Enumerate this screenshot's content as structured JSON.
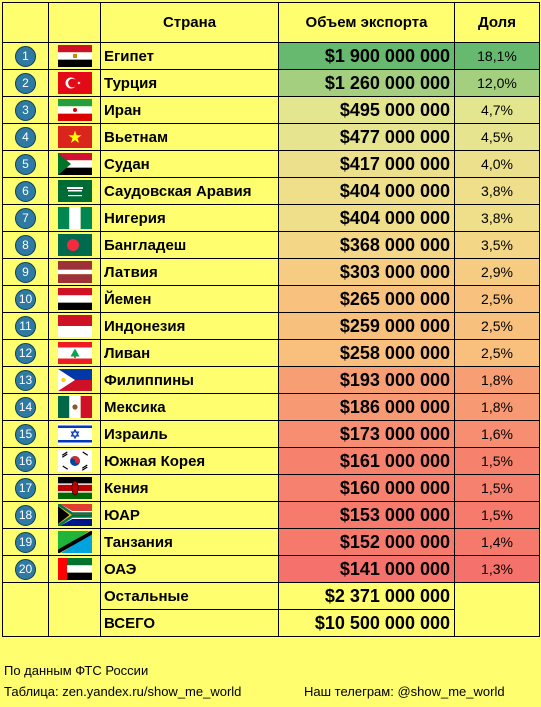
{
  "header": {
    "country": "Страна",
    "value": "Объем экспорта",
    "share": "Доля"
  },
  "rows": [
    {
      "num": "1",
      "flag": "egypt-flag",
      "country": "Египет",
      "value": "$1 900 000 000",
      "share": "18,1%",
      "color": "#66b96e"
    },
    {
      "num": "2",
      "flag": "turkey-flag",
      "country": "Турция",
      "value": "$1 260 000 000",
      "share": "12,0%",
      "color": "#a3cf7e"
    },
    {
      "num": "3",
      "flag": "iran-flag",
      "country": "Иран",
      "value": "$495 000 000",
      "share": "4,7%",
      "color": "#e4e58f"
    },
    {
      "num": "4",
      "flag": "vietnam-flag",
      "country": "Вьетнам",
      "value": "$477 000 000",
      "share": "4,5%",
      "color": "#e6e48f"
    },
    {
      "num": "5",
      "flag": "sudan-flag",
      "country": "Судан",
      "value": "$417 000 000",
      "share": "4,0%",
      "color": "#ede08c"
    },
    {
      "num": "6",
      "flag": "saudi-arabia-flag",
      "country": "Саудовская Аравия",
      "value": "$404 000 000",
      "share": "3,8%",
      "color": "#efde8a"
    },
    {
      "num": "7",
      "flag": "nigeria-flag",
      "country": "Нигерия",
      "value": "$404 000 000",
      "share": "3,8%",
      "color": "#efde8a"
    },
    {
      "num": "8",
      "flag": "bangladesh-flag",
      "country": "Бангладеш",
      "value": "$368 000 000",
      "share": "3,5%",
      "color": "#f3d786"
    },
    {
      "num": "9",
      "flag": "latvia-flag",
      "country": "Латвия",
      "value": "$303 000 000",
      "share": "2,9%",
      "color": "#f6cc82"
    },
    {
      "num": "10",
      "flag": "yemen-flag",
      "country": "Йемен",
      "value": "$265 000 000",
      "share": "2,5%",
      "color": "#f8c27e"
    },
    {
      "num": "11",
      "flag": "indonesia-flag",
      "country": "Индонезия",
      "value": "$259 000 000",
      "share": "2,5%",
      "color": "#f8c07d"
    },
    {
      "num": "12",
      "flag": "lebanon-flag",
      "country": "Ливан",
      "value": "$258 000 000",
      "share": "2,5%",
      "color": "#f8bf7d"
    },
    {
      "num": "13",
      "flag": "philippines-flag",
      "country": "Филиппины",
      "value": "$193 000 000",
      "share": "1,8%",
      "color": "#f79e75"
    },
    {
      "num": "14",
      "flag": "mexico-flag",
      "country": "Мексика",
      "value": "$186 000 000",
      "share": "1,8%",
      "color": "#f79a74"
    },
    {
      "num": "15",
      "flag": "israel-flag",
      "country": "Израиль",
      "value": "$173 000 000",
      "share": "1,6%",
      "color": "#f78e71"
    },
    {
      "num": "16",
      "flag": "south-korea-flag",
      "country": "Южная Корея",
      "value": "$161 000 000",
      "share": "1,5%",
      "color": "#f6826e"
    },
    {
      "num": "17",
      "flag": "kenya-flag",
      "country": "Кения",
      "value": "$160 000 000",
      "share": "1,5%",
      "color": "#f6816e"
    },
    {
      "num": "18",
      "flag": "south-africa-flag",
      "country": "ЮАР",
      "value": "$153 000 000",
      "share": "1,5%",
      "color": "#f67b6d"
    },
    {
      "num": "19",
      "flag": "tanzania-flag",
      "country": "Танзания",
      "value": "$152 000 000",
      "share": "1,4%",
      "color": "#f67a6c"
    },
    {
      "num": "20",
      "flag": "uae-flag",
      "country": "ОАЭ",
      "value": "$141 000 000",
      "share": "1,3%",
      "color": "#f5716b"
    }
  ],
  "others": {
    "label": "Остальные",
    "value": "$2 371 000 000"
  },
  "total": {
    "label": "ВСЕГО",
    "value": "$10 500 000 000"
  },
  "footer": {
    "source": "По данным ФТС России",
    "table_credit": "Таблица: zen.yandex.ru/show_me_world",
    "telegram": "Наш телеграм: @show_me_world"
  }
}
